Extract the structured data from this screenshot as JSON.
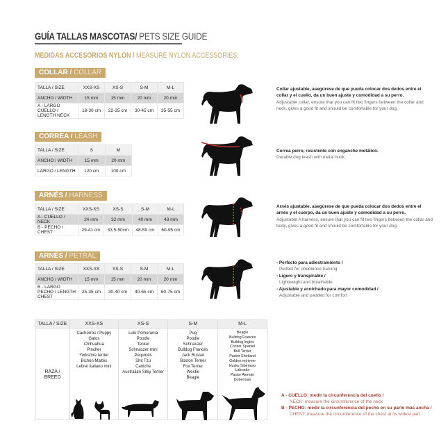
{
  "header": {
    "title_es": "GUÍA TALLAS MASCOTAS/",
    "title_en": " PETS SIZE GUIDE",
    "subtitle_es": "MEDIDAS ACCESORIOS NYLON /",
    "subtitle_en": " MEASURE NYLON ACCESSORIES:"
  },
  "colors": {
    "gold": "#c9a96e",
    "red": "#c0302a",
    "row_gray": "#d6d6d6"
  },
  "collar": {
    "badge_es": "COLLAR /",
    "badge_en": " COLLAR",
    "rows": [
      [
        "TALLA / SIZE",
        "XXS-XS",
        "XS-S",
        "S-M",
        "M-L"
      ],
      [
        "ANCHO / WIDTH",
        "15 mm",
        "15 mm",
        "20 mm",
        "20 mm"
      ],
      [
        "A - LARGO CUELLO / LENGTH NECK",
        "18-30 cm",
        "22-35 cm",
        "30-45 cm",
        "35-55 cm"
      ]
    ],
    "desc_es": "Collar ajustable, asegúrese de que pueda colocar dos dedos entre el collar y el cuello, da un buen ajuste y comodidad a su perro.",
    "desc_en": "Adjustable collar, ensure that you can fit two fingers between the collar and neck, gives a good fit and should be comfortable for your dog.",
    "icon": "dog-with-collar-icon"
  },
  "leash": {
    "badge_es": "CORREA /",
    "badge_en": " LEASH",
    "rows": [
      [
        "TALLA / SIZE",
        "S",
        "M"
      ],
      [
        "ANCHO / WIDTH",
        "15 mm",
        "20 mm"
      ],
      [
        "LARGO / LENGTH",
        "120 cm",
        "100 cm"
      ]
    ],
    "desc_es": "Correa perro, resistente con enganche metálico.",
    "desc_en": "Durable dog leash with metal hook.",
    "icon": "dog-with-leash-icon"
  },
  "harness": {
    "badge_es": "ARNÉS /",
    "badge_en": " HARNESS",
    "rows": [
      [
        "TALLA / SIZE",
        "XXS-XS",
        "XS-S",
        "S-M",
        "M-L"
      ],
      [
        "A - CUELLO / NECK",
        "24 mm",
        "32 mm",
        "40 mm",
        "48 mm"
      ],
      [
        "B - PECHO / CHEST",
        "29-41 cm",
        "33,5-50cm",
        "48-59 cm",
        "60-95 cm"
      ]
    ],
    "desc_es": "Arnés ajustable, asegúrese de que pueda colocar dos dedos entre el arnés y el cuerpo, da un buen ajuste y comodidad a su perro.",
    "desc_en": "Adjustable A harness, ensure that you can fit two fingers between the collar and body, gives a good fit and should be comfortable for your dog.",
    "icon": "dog-with-harness-icon"
  },
  "petral": {
    "badge_es": "ARNÉS /",
    "badge_en": " PETRAL",
    "rows": [
      [
        "TALLA / SIZE",
        "XXS-XS",
        "XS-S",
        "S-M",
        "M-L"
      ],
      [
        "ANCHO / WIDTH",
        "15 mm",
        "15 mm",
        "20 mm",
        "20 mm"
      ],
      [
        "B - LARGO PECHO / LENGTH CHEST",
        "25-35 cm",
        "30-40 cm",
        "40-65 cm",
        "60-75 cm"
      ]
    ],
    "bullets": [
      {
        "es": "- Perfecto para adiestramiento /",
        "en": "Perfect for obedience training"
      },
      {
        "es": "- Ligero y transpirable /",
        "en": "Lightweight and breathable"
      },
      {
        "es": "- Ajustable y acolchado para mayor comodidad /",
        "en": "Adjustable and padded for comfort"
      }
    ],
    "icon": "dog-with-petral-icon"
  },
  "breeds": {
    "size_label": "TALLA /  SIZE",
    "row_label": "RAZA / BREED",
    "sizes": [
      "XXS-XS",
      "XS-S",
      "S-M",
      "M-L"
    ],
    "lists": [
      "Cachorros / Puppy\nGatos\nChihuahua\nPincher\nYorkshire terrier\nBichón Maltés\nLebrel Italiano mini",
      "Lulú Pomerania\nPoodle\nTeckel\nSchnauzer mini\nPequinés\nShit Tzu\nCaniche\nAustralian Silky Terrier",
      "Pug\nPoodle\nSchnauzer\nBulldog Francés\nJack Russel\nBoston Terrier\nFox Terrier\nWestie\nBeagle",
      "Beagle\nBulldog Francés\nBulldog Inglés\nCocker Spaniel\nBull Terrier\nPastor Shetland\nGolden retriever\nHusky Siberiano\nLabrador\nPastor Alemán\nDoberman"
    ],
    "icons": [
      "cat-and-chihuahua-icon",
      "dachshund-icon",
      "schnauzer-icon",
      "doberman-icon"
    ]
  },
  "legend": [
    {
      "es": "A - CUELLO: medir la circunferencia del cuello /",
      "en": "NECK: measure the circumference of the neck"
    },
    {
      "es": "B - PECHO: medir la circunferencia del pecho en su parte más ancha /",
      "en": "CHEST: measure the circumference of the chest at its widest part"
    }
  ]
}
